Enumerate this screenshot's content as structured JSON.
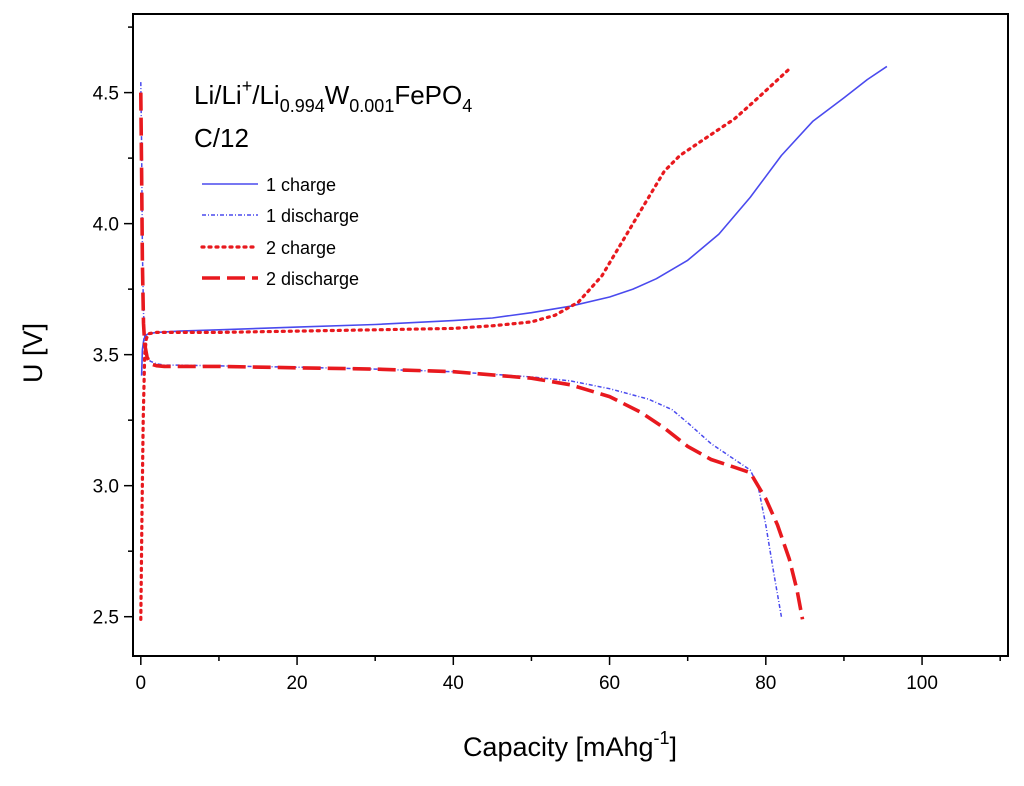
{
  "chart_data": {
    "type": "line",
    "title": "",
    "xlabel": "Capacity [mAhg",
    "xlabel_sup": "-1",
    "xlabel_tail": "]",
    "ylabel": "U [V]",
    "xlim": [
      -1,
      111
    ],
    "ylim": [
      2.35,
      4.8
    ],
    "x_ticks": [
      0,
      20,
      40,
      60,
      80,
      100
    ],
    "x_tick_labels": [
      "0",
      "20",
      "40",
      "60",
      "80",
      "100"
    ],
    "x_minor_step": 10,
    "y_ticks": [
      2.5,
      3.0,
      3.5,
      4.0,
      4.5
    ],
    "y_tick_labels": [
      "2.5",
      "3.0",
      "3.5",
      "4.0",
      "4.5"
    ],
    "y_minor_step": 0.25,
    "grid": false,
    "legend_position": "top-left",
    "annotations": {
      "formula": {
        "p1": "Li/Li",
        "p1_sup": "+",
        "p2": "/Li",
        "p2_sub": "0.994",
        "p3": "W",
        "p3_sub": "0.001",
        "p4": "FePO",
        "p4_sub": "4"
      },
      "rate": "C/12"
    },
    "series": [
      {
        "name": "1 charge",
        "color": "#4a4aee",
        "style": "solid",
        "x": [
          0.1,
          0.2,
          0.4,
          0.7,
          1,
          2,
          5,
          10,
          20,
          30,
          40,
          45,
          50,
          55,
          60,
          63,
          66,
          70,
          74,
          78,
          82,
          86,
          90,
          93,
          95.5
        ],
        "y": [
          3.42,
          3.52,
          3.56,
          3.575,
          3.58,
          3.585,
          3.59,
          3.595,
          3.605,
          3.615,
          3.63,
          3.64,
          3.66,
          3.685,
          3.72,
          3.75,
          3.79,
          3.86,
          3.96,
          4.1,
          4.26,
          4.39,
          4.48,
          4.55,
          4.6
        ]
      },
      {
        "name": "1 discharge",
        "color": "#4a4aee",
        "style": "dash-dot",
        "x": [
          0,
          0.1,
          0.2,
          0.35,
          0.5,
          0.8,
          1.2,
          2,
          3,
          5,
          10,
          20,
          30,
          40,
          50,
          55,
          60,
          65,
          68,
          70,
          73,
          76,
          78,
          79,
          80,
          81,
          82
        ],
        "y": [
          4.54,
          4.3,
          3.9,
          3.66,
          3.57,
          3.5,
          3.475,
          3.465,
          3.46,
          3.46,
          3.457,
          3.452,
          3.445,
          3.435,
          3.415,
          3.4,
          3.37,
          3.33,
          3.29,
          3.24,
          3.16,
          3.1,
          3.06,
          3.0,
          2.85,
          2.67,
          2.5
        ]
      },
      {
        "name": "2 charge",
        "color": "#e8191e",
        "style": "dotted",
        "x": [
          0,
          0.15,
          0.3,
          0.5,
          0.7,
          1,
          2,
          5,
          10,
          20,
          30,
          40,
          45,
          50,
          53,
          56,
          59,
          62,
          65,
          67,
          69,
          71,
          73,
          76,
          79,
          83
        ],
        "y": [
          2.49,
          2.9,
          3.25,
          3.5,
          3.56,
          3.58,
          3.585,
          3.585,
          3.585,
          3.59,
          3.595,
          3.6,
          3.61,
          3.625,
          3.65,
          3.7,
          3.8,
          3.95,
          4.1,
          4.2,
          4.26,
          4.3,
          4.34,
          4.4,
          4.48,
          4.59
        ]
      },
      {
        "name": "2 discharge",
        "color": "#e8191e",
        "style": "dashed",
        "x": [
          0,
          0.1,
          0.2,
          0.35,
          0.5,
          0.8,
          1.2,
          2,
          3,
          5,
          10,
          20,
          30,
          40,
          50,
          55,
          60,
          64,
          67,
          70,
          73,
          76,
          78,
          80,
          81.5,
          83,
          84,
          84.7
        ],
        "y": [
          4.5,
          4.2,
          3.85,
          3.62,
          3.54,
          3.49,
          3.465,
          3.458,
          3.455,
          3.455,
          3.455,
          3.45,
          3.445,
          3.435,
          3.41,
          3.385,
          3.34,
          3.28,
          3.22,
          3.15,
          3.1,
          3.07,
          3.05,
          2.95,
          2.85,
          2.72,
          2.6,
          2.49
        ]
      }
    ]
  }
}
